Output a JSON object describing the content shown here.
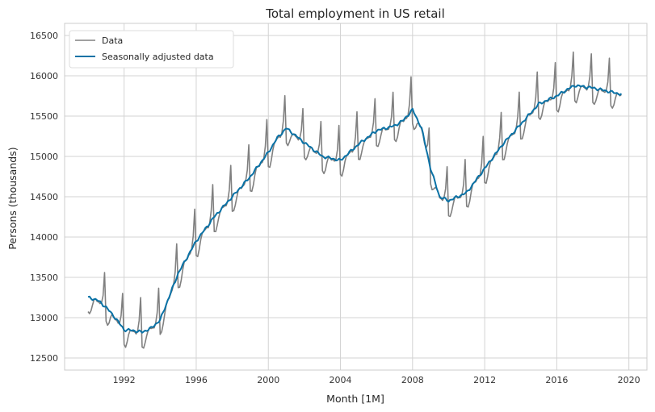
{
  "chart_data": {
    "type": "line",
    "title": "Total employment in US retail",
    "xlabel": "Month [1M]",
    "ylabel": "Persons (thousands)",
    "xlim": [
      1988.7,
      2021.0
    ],
    "ylim": [
      12350,
      16650
    ],
    "xticks": [
      1992,
      1996,
      2000,
      2004,
      2008,
      2012,
      2016,
      2020
    ],
    "xtick_labels": [
      "1992",
      "1996",
      "2000",
      "2004",
      "2008",
      "2012",
      "2016",
      "2020"
    ],
    "yticks": [
      12500,
      13000,
      13500,
      14000,
      14500,
      15000,
      15500,
      16000,
      16500
    ],
    "ytick_labels": [
      "12500",
      "13000",
      "13500",
      "14000",
      "14500",
      "15000",
      "15500",
      "16000",
      "16500"
    ],
    "grid": true,
    "legend_position": "upper-left",
    "start_year": 1990.0,
    "seasonal_amplitude": [
      -180,
      -205,
      -150,
      -65,
      -5,
      5,
      -15,
      -10,
      -25,
      10,
      125,
      420
    ],
    "trend_anchors": {
      "x": [
        1990.0,
        1990.5,
        1991.0,
        1991.5,
        1992.0,
        1992.5,
        1993.0,
        1993.5,
        1994.0,
        1995.0,
        1996.0,
        1997.0,
        1998.0,
        1999.0,
        2000.0,
        2000.5,
        2001.0,
        2002.0,
        2003.0,
        2004.0,
        2005.0,
        2006.0,
        2007.0,
        2007.5,
        2008.0,
        2008.5,
        2009.0,
        2009.5,
        2010.0,
        2011.0,
        2012.0,
        2013.0,
        2014.0,
        2015.0,
        2016.0,
        2016.5,
        2017.0,
        2018.0,
        2019.0,
        2019.6
      ],
      "y": [
        13250,
        13220,
        13130,
        13000,
        12850,
        12840,
        12820,
        12870,
        12970,
        13550,
        13950,
        14250,
        14500,
        14750,
        15050,
        15230,
        15350,
        15170,
        15000,
        14950,
        15150,
        15320,
        15380,
        15450,
        15580,
        15350,
        14850,
        14500,
        14450,
        14550,
        14850,
        15150,
        15400,
        15650,
        15750,
        15820,
        15880,
        15850,
        15800,
        15770
      ]
    },
    "series": [
      {
        "name": "Data",
        "color": "#808080",
        "kind": "monthly_raw"
      },
      {
        "name": "Seasonally adjusted data",
        "color": "#0a72a6",
        "kind": "monthly_adjusted"
      }
    ]
  }
}
